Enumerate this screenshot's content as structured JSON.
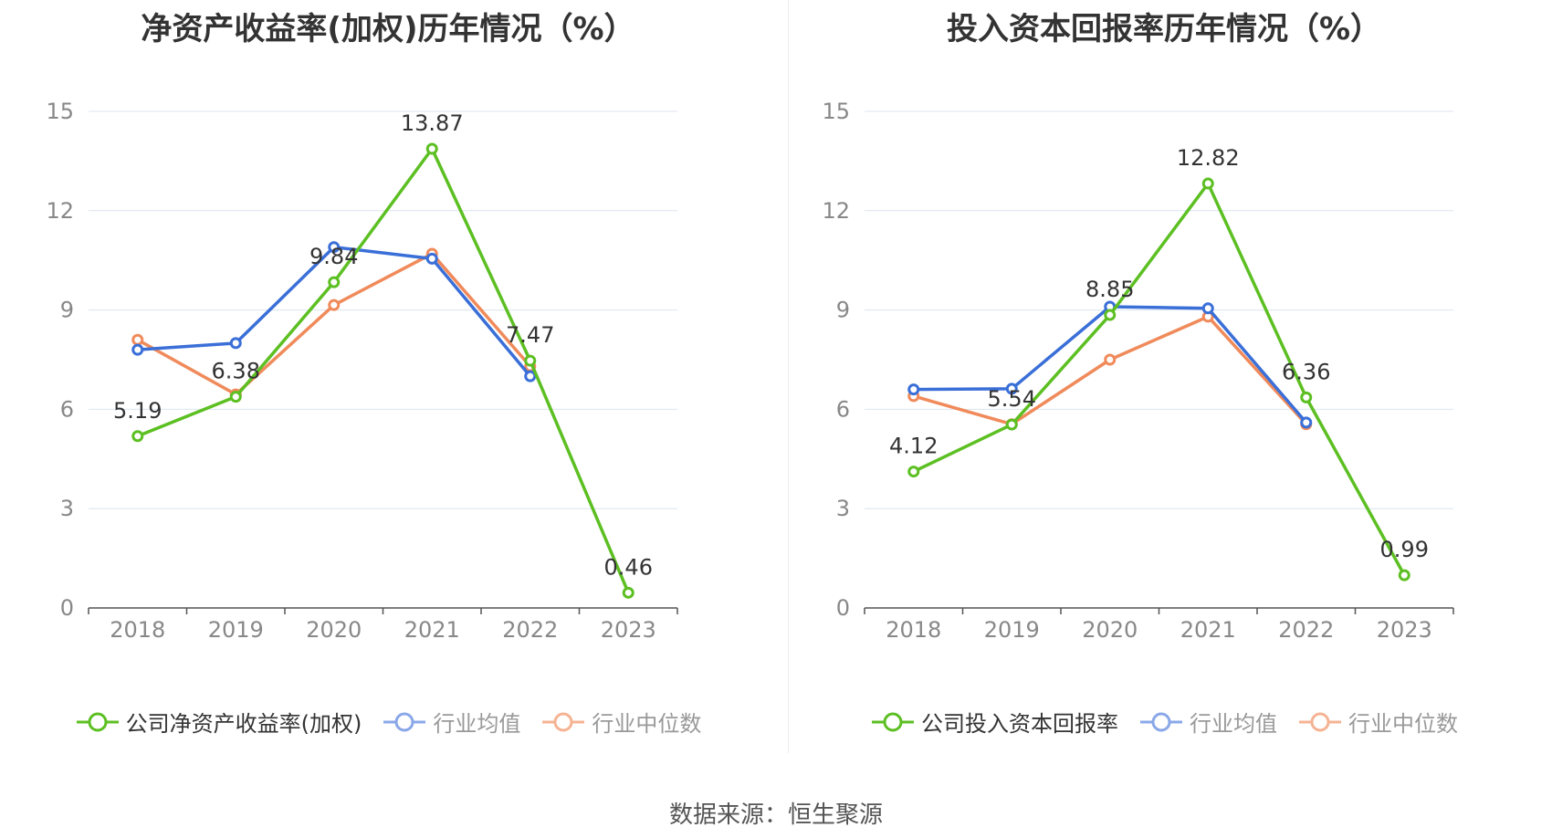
{
  "colors": {
    "company": "#5cbf22",
    "industry_avg": "#3a6fd8",
    "industry_median": "#f08a5a",
    "grid": "#dce4f0",
    "axis": "#555555",
    "tick": "#888888"
  },
  "footer": {
    "source": "数据来源：恒生聚源"
  },
  "chart_data": [
    {
      "type": "line",
      "title": "净资产收益率(加权)历年情况（%）",
      "categories": [
        "2018",
        "2019",
        "2020",
        "2021",
        "2022",
        "2023"
      ],
      "ylim": [
        0,
        15
      ],
      "yticks": [
        "0",
        "3",
        "6",
        "9",
        "12",
        "15"
      ],
      "grid": true,
      "legend_position": "bottom",
      "series": [
        {
          "name": "公司净资产收益率(加权)",
          "values": [
            5.19,
            6.38,
            9.84,
            13.87,
            7.47,
            0.46
          ],
          "labels": [
            "5.19",
            "6.38",
            "9.84",
            "13.87",
            "7.47",
            "0.46"
          ]
        },
        {
          "name": "行业均值",
          "values": [
            7.8,
            8.0,
            10.9,
            10.55,
            7.0,
            null
          ]
        },
        {
          "name": "行业中位数",
          "values": [
            8.1,
            6.45,
            9.15,
            10.7,
            7.3,
            null
          ]
        }
      ]
    },
    {
      "type": "line",
      "title": "投入资本回报率历年情况（%）",
      "categories": [
        "2018",
        "2019",
        "2020",
        "2021",
        "2022",
        "2023"
      ],
      "ylim": [
        0,
        15
      ],
      "yticks": [
        "0",
        "3",
        "6",
        "9",
        "12",
        "15"
      ],
      "grid": true,
      "legend_position": "bottom",
      "series": [
        {
          "name": "公司投入资本回报率",
          "values": [
            4.12,
            5.54,
            8.85,
            12.82,
            6.36,
            0.99
          ],
          "labels": [
            "4.12",
            "5.54",
            "8.85",
            "12.82",
            "6.36",
            "0.99"
          ]
        },
        {
          "name": "行业均值",
          "values": [
            6.6,
            6.62,
            9.1,
            9.05,
            5.6,
            null
          ]
        },
        {
          "name": "行业中位数",
          "values": [
            6.4,
            5.55,
            7.5,
            8.8,
            5.55,
            null
          ]
        }
      ]
    }
  ]
}
